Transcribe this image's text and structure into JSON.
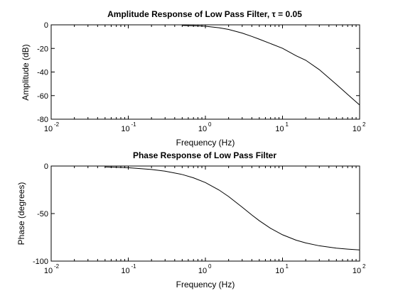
{
  "chart_data": [
    {
      "type": "line",
      "title": "Amplitude Response of Low Pass Filter, τ = 0.05",
      "xlabel": "Frequency (Hz)",
      "ylabel": "Amplitude (dB)",
      "xscale": "log",
      "xlim": [
        0.01,
        100
      ],
      "ylim": [
        -80,
        0
      ],
      "xtick_base": "10",
      "xtick_exponents": [
        "-2",
        "-1",
        "0",
        "1",
        "2"
      ],
      "ytick_labels": [
        "0",
        "-20",
        "-40",
        "-60",
        "-80"
      ],
      "grid": false,
      "legend": "none",
      "line_color": "#000000",
      "series": [
        {
          "x": [
            0.5,
            0.8,
            1,
            1.5,
            2,
            3,
            4,
            5,
            7,
            10,
            15,
            20,
            30,
            50,
            70,
            100
          ],
          "y": [
            -0.5,
            -0.9,
            -1.2,
            -2.5,
            -3.9,
            -7.0,
            -9.8,
            -12.2,
            -15.9,
            -19.9,
            -26.2,
            -30.0,
            -38.0,
            -50.5,
            -59.0,
            -68.0
          ]
        }
      ]
    },
    {
      "type": "line",
      "title": "Phase Response of Low Pass Filter",
      "xlabel": "Frequency (Hz)",
      "ylabel": "Phase (degrees)",
      "xscale": "log",
      "xlim": [
        0.01,
        100
      ],
      "ylim": [
        -100,
        0
      ],
      "xtick_base": "10",
      "xtick_exponents": [
        "-2",
        "-1",
        "0",
        "1",
        "2"
      ],
      "ytick_labels": [
        "0",
        "-50",
        "-100"
      ],
      "grid": false,
      "legend": "none",
      "line_color": "#000000",
      "series": [
        {
          "x": [
            0.05,
            0.1,
            0.2,
            0.3,
            0.5,
            0.7,
            1,
            1.5,
            2,
            3,
            4,
            5,
            7,
            10,
            15,
            20,
            30,
            50,
            70,
            100
          ],
          "y": [
            -0.9,
            -1.8,
            -3.6,
            -5.4,
            -8.9,
            -12.4,
            -17.4,
            -25.2,
            -32.1,
            -43.3,
            -51.5,
            -57.5,
            -65.5,
            -72.3,
            -78.0,
            -80.9,
            -83.9,
            -86.4,
            -87.4,
            -88.2
          ]
        }
      ]
    }
  ]
}
